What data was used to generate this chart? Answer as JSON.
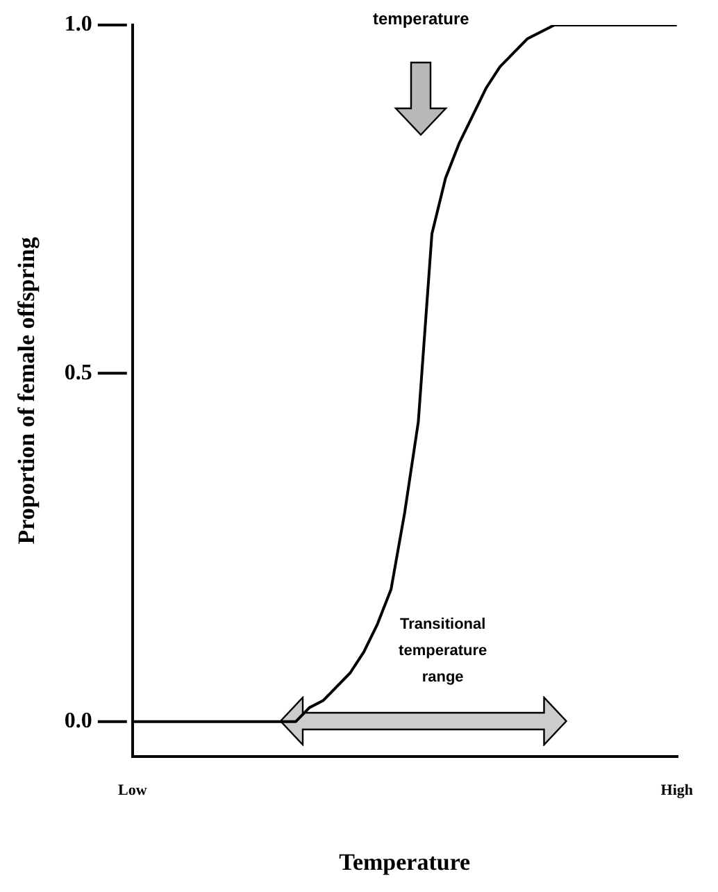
{
  "chart_data": {
    "type": "line",
    "xlabel": "Temperature",
    "ylabel": "Proportion of female offspring",
    "categories": [
      "Low",
      null,
      null,
      null,
      null,
      null,
      null,
      null,
      null,
      null,
      null,
      null,
      null,
      null,
      null,
      null,
      null,
      null,
      null,
      null,
      null,
      null,
      null,
      null,
      null,
      null,
      null,
      null,
      null,
      null,
      null,
      null,
      null,
      null,
      null,
      null,
      null,
      null,
      null,
      null,
      "High"
    ],
    "ylim": [
      -0.05,
      1
    ],
    "yticks": [
      {
        "value": 0,
        "label": "0.0"
      },
      {
        "value": 0.5,
        "label": "0.5"
      },
      {
        "value": 1,
        "label": "1.0"
      }
    ],
    "series": [
      {
        "color": "#000000",
        "values": [
          0,
          0,
          0,
          0,
          0,
          0,
          0,
          0,
          0,
          0,
          0,
          0,
          0,
          0.02,
          0.03,
          0.05,
          0.07,
          0.1,
          0.14,
          0.19,
          0.3,
          0.43,
          0.7,
          0.78,
          0.83,
          0.87,
          0.91,
          0.94,
          0.96,
          0.98,
          0.99,
          1,
          1,
          1,
          1,
          1,
          1,
          1,
          1,
          1,
          1
        ]
      }
    ],
    "annotations": [
      "temperature",
      "Transitional temperature range"
    ],
    "grid": false,
    "legend": false,
    "marker": "none",
    "line_style": "solid"
  }
}
